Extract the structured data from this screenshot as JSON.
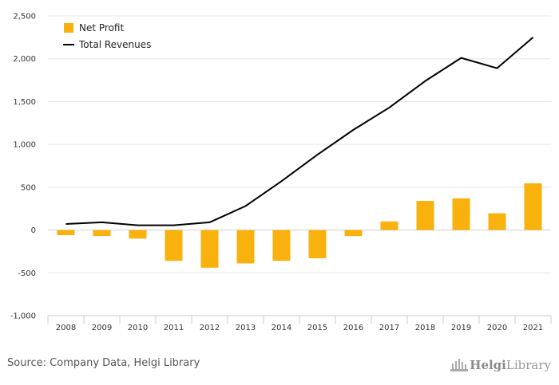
{
  "chart_data": {
    "type": "bar",
    "categories": [
      "2008",
      "2009",
      "2010",
      "2011",
      "2012",
      "2013",
      "2014",
      "2015",
      "2016",
      "2017",
      "2018",
      "2019",
      "2020",
      "2021"
    ],
    "series": [
      {
        "name": "Net Profit",
        "kind": "bar",
        "color": "#f8b10d",
        "values": [
          -60,
          -70,
          -100,
          -360,
          -440,
          -390,
          -360,
          -330,
          -70,
          100,
          340,
          370,
          195,
          545
        ]
      },
      {
        "name": "Total Revenues",
        "kind": "line",
        "color": "#000000",
        "values": [
          70,
          90,
          55,
          55,
          90,
          280,
          570,
          880,
          1170,
          1430,
          1740,
          2010,
          1890,
          2250
        ]
      }
    ],
    "ylim": [
      -1000,
      2500
    ],
    "yticks": [
      -1000,
      -500,
      0,
      500,
      1000,
      1500,
      2000,
      2500
    ],
    "ytick_labels": [
      "-1,000",
      "-500",
      "0",
      "500",
      "1,000",
      "1,500",
      "2,000",
      "2,500"
    ],
    "legend": {
      "placement": "top-left"
    },
    "grid": true,
    "title": "",
    "xlabel": "",
    "ylabel": ""
  },
  "footer": {
    "source": "Source: Company Data, Helgi Library",
    "logo_text_a": "Helgi",
    "logo_text_b": "Library",
    "logo_icon": "library-building-icon"
  }
}
